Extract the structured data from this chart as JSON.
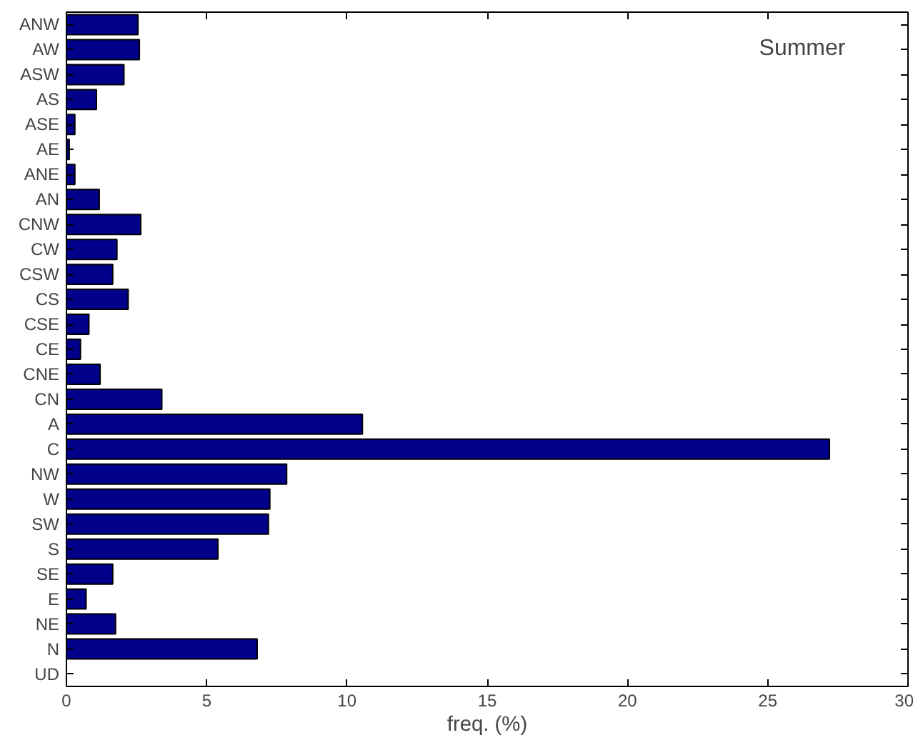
{
  "chart_data": {
    "type": "bar",
    "orientation": "horizontal",
    "xlabel": "freq. (%)",
    "annotations": [
      "Summer"
    ],
    "categories": [
      "ANW",
      "AW",
      "ASW",
      "AS",
      "ASE",
      "AE",
      "ANE",
      "AN",
      "CNW",
      "CW",
      "CSW",
      "CS",
      "CSE",
      "CE",
      "CNE",
      "CN",
      "A",
      "C",
      "NW",
      "W",
      "SW",
      "S",
      "SE",
      "E",
      "NE",
      "N",
      "UD"
    ],
    "values": [
      2.55,
      2.6,
      2.05,
      1.07,
      0.3,
      0.1,
      0.3,
      1.17,
      2.65,
      1.8,
      1.65,
      2.2,
      0.8,
      0.5,
      1.2,
      3.4,
      10.55,
      27.2,
      7.85,
      7.25,
      7.2,
      5.4,
      1.65,
      0.7,
      1.75,
      6.8,
      null
    ],
    "color": "#00008b",
    "xlim": [
      0,
      30
    ],
    "xticks": [
      0,
      5,
      10,
      15,
      20,
      25,
      30
    ],
    "grid": false
  }
}
